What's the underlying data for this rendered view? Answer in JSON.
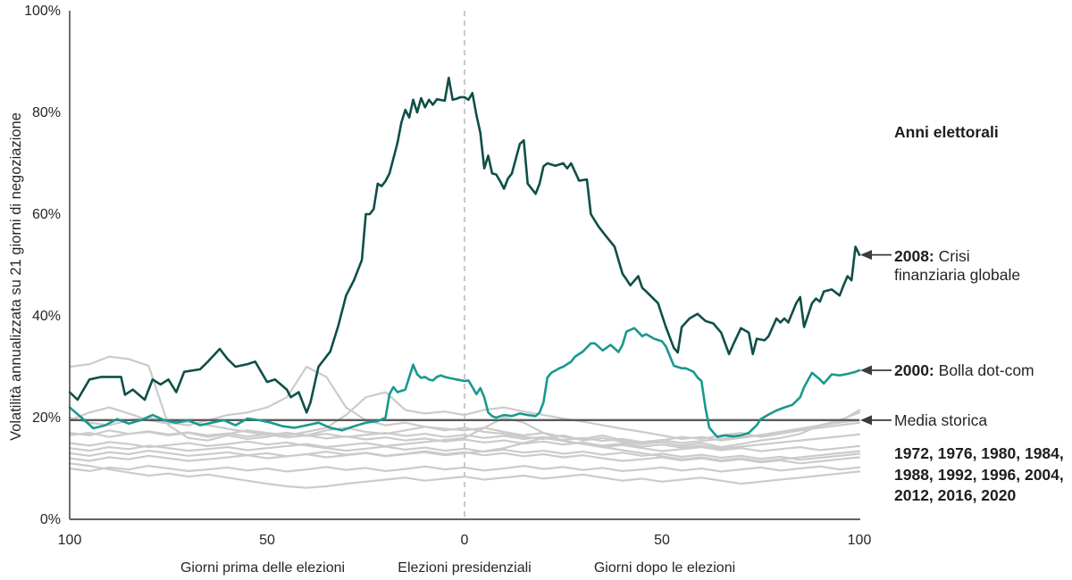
{
  "y_axis_title": "Volatilità annualizzata su 21 giorni di negoziazione",
  "y_tick_labels": [
    "100%",
    "80%",
    "60%",
    "40%",
    "20%",
    "0%"
  ],
  "x_tick_labels": [
    "100",
    "50",
    "0",
    "50",
    "100"
  ],
  "x_captions": {
    "before": "Giorni prima delle elezioni",
    "election": "Elezioni presidenziali",
    "after": "Giorni dopo le elezioni"
  },
  "legend_title": "Anni elettorali",
  "annotations": [
    {
      "id": "2008",
      "bold": "2008:",
      "text": "Crisi finanziaria globale",
      "points_to_pct": 52
    },
    {
      "id": "2000",
      "bold": "2000:",
      "text": "Bolla dot-com",
      "points_to_pct": 29.3
    },
    {
      "id": "media",
      "bold": "",
      "text": "Media storica",
      "points_to_pct": 19.5
    }
  ],
  "years_note": "1972, 1976, 1980, 1984, 1988, 1992, 1996, 2004, 2012, 2016, 2020",
  "chart_data": {
    "type": "line",
    "title": "Anni elettorali",
    "ylabel": "Volatilità annualizzata su 21 giorni di negoziazione",
    "xlabel_left": "Giorni prima delle elezioni",
    "xlabel_center": "Elezioni presidenziali",
    "xlabel_right": "Giorni dopo le elezioni",
    "ylim": [
      0,
      100
    ],
    "xlim": [
      -100,
      100
    ],
    "x_unit": "giorni di negoziazione rispetto alle elezioni",
    "grid": false,
    "legend_position": "right",
    "historical_average_pct": 19.5,
    "colors": {
      "highlight_2008": "#0e4f48",
      "highlight_2000": "#18998f",
      "other_years": "#cbcbcb",
      "average_line": "#58595b",
      "election_dash": "#c9c9c9",
      "axis": "#4b4b4b",
      "arrow": "#3c3c3c"
    },
    "highlight_series": [
      {
        "name": "2008",
        "label": "2008: Crisi finanziaria globale",
        "color": "#0e4f48",
        "x": [
          -100,
          -98,
          -95,
          -92,
          -87,
          -86,
          -84,
          -81,
          -79,
          -77,
          -75,
          -73,
          -71,
          -67,
          -65,
          -62,
          -60,
          -58,
          -55,
          -53,
          -50,
          -48,
          -45,
          -44,
          -42,
          -40,
          -39,
          -37,
          -34,
          -32,
          -30,
          -28,
          -26,
          -25,
          -24,
          -23,
          -22,
          -21,
          -20,
          -19,
          -17,
          -16,
          -15,
          -14,
          -13,
          -12,
          -11,
          -10,
          -9,
          -8,
          -7,
          -5,
          -4,
          -3,
          -2,
          -1,
          0,
          1,
          2,
          3,
          4,
          5,
          6,
          7,
          8,
          9,
          10,
          11,
          12,
          14,
          15,
          16,
          18,
          19,
          20,
          21,
          23,
          25,
          26,
          27,
          29,
          31,
          32,
          34,
          36,
          38,
          40,
          41,
          42,
          44,
          45,
          46,
          49,
          51,
          53,
          54,
          55,
          57,
          59,
          61,
          63,
          65,
          67,
          68,
          70,
          72,
          73,
          74,
          76,
          77,
          79,
          80,
          81,
          82,
          84,
          85,
          86,
          88,
          89,
          90,
          91,
          93,
          95,
          96,
          97,
          98,
          99,
          100
        ],
        "y": [
          25,
          23.5,
          27.5,
          28,
          28,
          24.5,
          25.5,
          23.5,
          27.5,
          26.5,
          27.5,
          25,
          29,
          29.5,
          31,
          33.5,
          31.5,
          30,
          30.5,
          31,
          27,
          27.5,
          25.5,
          24,
          25,
          21,
          23,
          30,
          33,
          38,
          44,
          47,
          51,
          60,
          60,
          61,
          66,
          65.5,
          66.5,
          68,
          74,
          78,
          80.5,
          79,
          82.5,
          80,
          82.8,
          81,
          82.5,
          81.5,
          82.6,
          82.3,
          86.8,
          82.5,
          82.7,
          83,
          83,
          82.5,
          83.8,
          79.5,
          76,
          69,
          71.5,
          68,
          67.8,
          66.5,
          65,
          67,
          68,
          73.8,
          74.5,
          66,
          64,
          66,
          69.4,
          70,
          69.5,
          70,
          69,
          70,
          66.6,
          66.8,
          60,
          57.5,
          55.5,
          53.6,
          48.3,
          47.2,
          46,
          47.8,
          45.5,
          44.8,
          42.5,
          37.8,
          33.7,
          32.8,
          37.8,
          39.5,
          40.4,
          39,
          38.5,
          36.7,
          32.5,
          34.3,
          37.6,
          36.7,
          32.5,
          35.5,
          35.2,
          36,
          39.5,
          38.7,
          39.5,
          38.7,
          42.5,
          43.7,
          37.8,
          42.5,
          43.4,
          42.8,
          44.8,
          45.2,
          44,
          46,
          47.8,
          47,
          53.6,
          52
        ]
      },
      {
        "name": "2000",
        "label": "2000: Bolla dot-com",
        "color": "#18998f",
        "x": [
          -100,
          -97,
          -94,
          -91,
          -88,
          -85,
          -82,
          -79,
          -76,
          -73,
          -70,
          -67,
          -64,
          -61,
          -58,
          -55,
          -52,
          -49,
          -46,
          -43,
          -40,
          -37,
          -34,
          -31,
          -28,
          -25,
          -22,
          -20,
          -19,
          -18,
          -17,
          -15,
          -13,
          -12,
          -11,
          -10,
          -9,
          -8,
          -7,
          -6,
          -5,
          -4,
          -2,
          0,
          1,
          2,
          3,
          4,
          5,
          6,
          7,
          8,
          10,
          12,
          14,
          16,
          18,
          19,
          20,
          21,
          22,
          24,
          25,
          27,
          28,
          30,
          32,
          33,
          35,
          37,
          39,
          40,
          41,
          43,
          45,
          46,
          48,
          50,
          51,
          53,
          55,
          56,
          58,
          59,
          60,
          61,
          62,
          64,
          66,
          68,
          70,
          72,
          74,
          75,
          77,
          79,
          81,
          83,
          85,
          86,
          88,
          90,
          91,
          93,
          95,
          97,
          99,
          100
        ],
        "y": [
          22,
          20,
          17.9,
          18.5,
          19.7,
          18.8,
          19.5,
          20.5,
          19.5,
          19,
          19.5,
          18.5,
          19,
          19.5,
          18.5,
          19.8,
          19.5,
          19,
          18.3,
          18,
          18.5,
          19,
          18,
          17.5,
          18.3,
          19,
          19.3,
          20,
          24.6,
          26,
          25,
          25.5,
          30.4,
          28.5,
          27.8,
          28,
          27.5,
          27.3,
          28,
          28.3,
          28,
          27.8,
          27.5,
          27.2,
          27.3,
          26,
          24.6,
          25.8,
          24,
          21,
          20.3,
          20,
          20.5,
          20.3,
          20.8,
          20.5,
          20.3,
          21,
          23,
          27.9,
          28.8,
          29.7,
          30,
          31,
          32,
          33,
          34.6,
          34.6,
          33.2,
          34.3,
          32.9,
          34.3,
          36.9,
          37.6,
          36,
          36.4,
          35.5,
          35,
          34,
          30.2,
          29.7,
          29.7,
          29,
          27.9,
          27.2,
          22,
          18,
          16.2,
          16.5,
          16.3,
          16.5,
          17,
          18.5,
          19.7,
          20.6,
          21.4,
          22,
          22.5,
          24,
          26,
          28.8,
          27.5,
          26.7,
          28.5,
          28.3,
          28.6,
          29,
          29.3
        ]
      }
    ],
    "other_years": {
      "label": "1972, 1976, 1980, 1984, 1988, 1992, 1996, 2004, 2012, 2016, 2020",
      "color": "#cbcbcb",
      "x_start": -100,
      "x_step": 5,
      "series": [
        {
          "name": "1972",
          "values": [
            10,
            9.5,
            10.2,
            9.8,
            10.5,
            10,
            9.5,
            9.8,
            10.2,
            9.6,
            10,
            9.4,
            9.8,
            10.3,
            9.7,
            10.1,
            9.5,
            9.9,
            10.4,
            9.8,
            10.2,
            9.6,
            10,
            10.5,
            9.9,
            10.3,
            9.7,
            10.1,
            9.5,
            9.8,
            10.2,
            9.6,
            10,
            9.4,
            9.8,
            10.2,
            9.6,
            10,
            10.4,
            9.8,
            10.2
          ]
        },
        {
          "name": "1976",
          "values": [
            13,
            12.5,
            13.2,
            12.8,
            13.5,
            13,
            12.5,
            12.8,
            13.2,
            12.6,
            13,
            12.4,
            12.8,
            13.3,
            12.7,
            13.1,
            12.5,
            12.9,
            13.4,
            12.8,
            13.2,
            12.6,
            13,
            12.4,
            12.8,
            12.2,
            12.6,
            12,
            11.5,
            11.8,
            12.2,
            11.6,
            12,
            11.4,
            11.8,
            11.2,
            11.6,
            11,
            11.4,
            11.8,
            12.2
          ]
        },
        {
          "name": "1980",
          "values": [
            20,
            19,
            18.5,
            19.5,
            20,
            19,
            18.5,
            19.5,
            20.5,
            21,
            22,
            24,
            30,
            28,
            22,
            19.5,
            18.5,
            19,
            18.2,
            17.5,
            18,
            17.2,
            16.8,
            16.2,
            15.8,
            16.5,
            15.5,
            16,
            15.2,
            14.8,
            15.5,
            16.2,
            15.8,
            16.5,
            17,
            16.2,
            16.8,
            17.5,
            18,
            18.5,
            19
          ]
        },
        {
          "name": "1984",
          "values": [
            15,
            14.5,
            15.2,
            14.8,
            14.2,
            14.6,
            15,
            14.4,
            14.8,
            15.3,
            14.7,
            15.1,
            14.5,
            14,
            13.5,
            13.9,
            14.3,
            13.7,
            14.1,
            13.5,
            13.9,
            13.3,
            13.7,
            13.1,
            13.5,
            12.9,
            13.3,
            12.7,
            13.1,
            12.5,
            12.9,
            12.3,
            12.7,
            12.1,
            12.5,
            11.9,
            12.3,
            11.7,
            12.1,
            12.5,
            12.9
          ]
        },
        {
          "name": "1988",
          "values": [
            16.5,
            17,
            16.2,
            16.8,
            17.3,
            16.7,
            17.1,
            16.5,
            16.9,
            16.3,
            16.7,
            16.1,
            16.5,
            15.9,
            16.3,
            15.7,
            16.1,
            15.5,
            15.9,
            15.3,
            15.7,
            15.1,
            15.5,
            14.9,
            15.3,
            14.7,
            15.1,
            14.5,
            14.9,
            14.3,
            14.7,
            14.1,
            14.5,
            13.9,
            14.3,
            14.7,
            15.1,
            15.5,
            15.9,
            16.3,
            16.7
          ]
        },
        {
          "name": "1992",
          "values": [
            12,
            11.5,
            12.2,
            11.8,
            12.5,
            12,
            11.5,
            11.8,
            12.2,
            12.6,
            12,
            12.4,
            12.8,
            12.2,
            12.6,
            13,
            12.4,
            12.8,
            13.2,
            12.6,
            13,
            13.4,
            14,
            15,
            16,
            15.4,
            14.8,
            14.2,
            13.6,
            13,
            12.4,
            11.8,
            12.2,
            11.6,
            12,
            11.4,
            11.8,
            12.2,
            12.6,
            13,
            13.4
          ]
        },
        {
          "name": "1996",
          "values": [
            11,
            10.5,
            9.8,
            9.2,
            8.6,
            9,
            8.4,
            8.8,
            8.2,
            7.6,
            7,
            6.5,
            6.2,
            6.5,
            7,
            7.4,
            7.8,
            8.2,
            7.6,
            8,
            8.4,
            7.8,
            8.2,
            8.6,
            8,
            8.4,
            8.8,
            8.2,
            7.6,
            8,
            7.4,
            7.8,
            8.2,
            7.6,
            7,
            7.4,
            7.8,
            8.2,
            8.6,
            9,
            9.4
          ]
        },
        {
          "name": "2004",
          "values": [
            14,
            13.5,
            14.2,
            13.8,
            14.5,
            14,
            13.5,
            13.8,
            14.2,
            13.6,
            14,
            14.4,
            14.8,
            14.2,
            14.6,
            15,
            14.4,
            14.8,
            15.2,
            15.6,
            16,
            18,
            20,
            19,
            17,
            15.4,
            14.8,
            14.2,
            14.6,
            14,
            13.4,
            13.8,
            14.2,
            13.6,
            14,
            13.4,
            13.8,
            14.2,
            13.6,
            14,
            14.4
          ]
        },
        {
          "name": "2012",
          "values": [
            19.5,
            21,
            22,
            20.8,
            19.5,
            18.8,
            19.2,
            18.5,
            17.8,
            17.2,
            16.6,
            17,
            16.4,
            16.8,
            16.2,
            16.6,
            17,
            16.4,
            16.8,
            16.2,
            16.6,
            16,
            16.4,
            15.8,
            16.2,
            15.6,
            16,
            15.4,
            15.8,
            15.2,
            15.6,
            15,
            15.4,
            15.8,
            16.2,
            16.6,
            17.2,
            17.8,
            18.4,
            19,
            19.5
          ]
        },
        {
          "name": "2016",
          "values": [
            17,
            16.5,
            17.5,
            16.8,
            17.2,
            16.5,
            17,
            16.2,
            16.8,
            17.5,
            17,
            16.5,
            17.2,
            18,
            20.5,
            24,
            25,
            21.5,
            20.8,
            21.2,
            20.5,
            21.5,
            22,
            21.2,
            20.5,
            19.8,
            19.2,
            18.5,
            17.8,
            17.2,
            16.5,
            15.8,
            16.2,
            15.5,
            16,
            16.5,
            17.2,
            17.8,
            18.5,
            19.2,
            21.5
          ]
        },
        {
          "name": "2020",
          "values": [
            30,
            30.5,
            32,
            31.5,
            30.2,
            18.5,
            16,
            15.5,
            16.5,
            15.8,
            16.2,
            17,
            16.5,
            17.5,
            18,
            17.2,
            16.8,
            17.5,
            18.2,
            17.8,
            17.5,
            18,
            17.2,
            16.5,
            17,
            16.2,
            15.8,
            16.5,
            15.5,
            14.8,
            15.2,
            14.5,
            15,
            14.2,
            14.8,
            15.5,
            16,
            16.8,
            18.5,
            19.5,
            21
          ]
        }
      ]
    },
    "average_line": {
      "label": "Media storica",
      "value_pct": 19.5
    }
  }
}
